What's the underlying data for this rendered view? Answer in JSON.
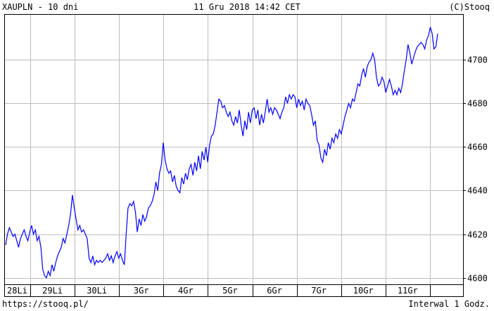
{
  "header": {
    "left": "XAUPLN - 10 dni",
    "center": "11 Gru 2018 14:42 CET",
    "right": "(C)Stooq"
  },
  "footer": {
    "left": "https://stooq.pl/",
    "right": "Interwal 1 Godz."
  },
  "colors": {
    "line": "#0000ff",
    "grid": "#bdbdbd",
    "axis": "#000000"
  },
  "chart_data": {
    "type": "line",
    "title": "XAUPLN - 10 dni",
    "ylim": [
      4597,
      4721
    ],
    "yticks": [
      4600,
      4620,
      4640,
      4660,
      4680,
      4700
    ],
    "grid": true,
    "days": [
      "28Li",
      "29Li",
      "30Li",
      "3Gr",
      "4Gr",
      "5Gr",
      "6Gr",
      "7Gr",
      "10Gr",
      "11Gr"
    ],
    "series": [
      {
        "values": [
          4615,
          4620,
          4623,
          4621,
          4619,
          4620,
          4617,
          4614,
          4618,
          4620,
          4622,
          4619,
          4617,
          4621,
          4624,
          4620,
          4622,
          4617,
          4619,
          4614,
          4604,
          4601,
          4600,
          4603,
          4601,
          4606,
          4603,
          4607,
          4610,
          4612,
          4614,
          4618,
          4616,
          4620,
          4624,
          4629,
          4638,
          4632,
          4627,
          4622,
          4624,
          4621,
          4622,
          4620,
          4618,
          4609,
          4607,
          4610,
          4606,
          4608,
          4607,
          4608,
          4607,
          4608,
          4609,
          4611,
          4608,
          4610,
          4607,
          4610,
          4612,
          4609,
          4611,
          4608,
          4606,
          4620,
          4632,
          4634,
          4633,
          4635,
          4630,
          4621,
          4627,
          4624,
          4629,
          4626,
          4628,
          4632,
          4633,
          4635,
          4638,
          4644,
          4640,
          4648,
          4652,
          4662,
          4654,
          4650,
          4648,
          4649,
          4644,
          4647,
          4642,
          4640,
          4639,
          4646,
          4643,
          4648,
          4645,
          4650,
          4652,
          4647,
          4653,
          4649,
          4656,
          4650,
          4658,
          4654,
          4660,
          4653,
          4661,
          4665,
          4666,
          4670,
          4676,
          4682,
          4681,
          4678,
          4679,
          4676,
          4674,
          4676,
          4672,
          4670,
          4674,
          4671,
          4677,
          4670,
          4665,
          4672,
          4668,
          4676,
          4671,
          4677,
          4678,
          4673,
          4677,
          4670,
          4675,
          4671,
          4676,
          4682,
          4676,
          4678,
          4675,
          4678,
          4677,
          4675,
          4673,
          4676,
          4678,
          4683,
          4680,
          4684,
          4682,
          4684,
          4683,
          4678,
          4682,
          4679,
          4681,
          4677,
          4682,
          4680,
          4679,
          4675,
          4670,
          4672,
          4663,
          4661,
          4655,
          4653,
          4659,
          4656,
          4662,
          4659,
          4664,
          4662,
          4666,
          4664,
          4668,
          4666,
          4670,
          4674,
          4677,
          4680,
          4678,
          4682,
          4681,
          4685,
          4689,
          4688,
          4693,
          4696,
          4692,
          4697,
          4699,
          4700,
          4703,
          4700,
          4692,
          4688,
          4689,
          4692,
          4690,
          4685,
          4688,
          4691,
          4688,
          4684,
          4686,
          4684,
          4687,
          4685,
          4689,
          4695,
          4700,
          4707,
          4703,
          4698,
          4701,
          4704,
          4706,
          4707,
          4708,
          4707,
          4705,
          4709,
          4711,
          4715,
          4712,
          4705,
          4706,
          4712
        ]
      }
    ]
  }
}
